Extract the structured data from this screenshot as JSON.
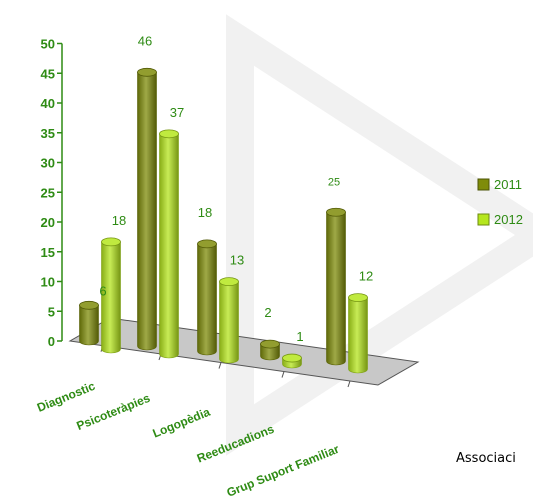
{
  "chart_data": {
    "type": "bar",
    "style": "3d-cylinder",
    "categories": [
      "Diagnostic",
      "Psicoteràpies",
      "Logopèdia",
      "Reeducadions",
      "Grup Suport Familiar"
    ],
    "series": [
      {
        "name": "2011",
        "values": [
          6,
          46,
          18,
          2,
          25
        ],
        "color": "#7f8c0a"
      },
      {
        "name": "2012",
        "values": [
          18,
          37,
          13,
          1,
          12
        ],
        "color": "#b5e61d"
      }
    ],
    "ylim": [
      0,
      50
    ],
    "yticks": [
      0,
      5,
      10,
      15,
      20,
      25,
      30,
      35,
      40,
      45,
      50
    ],
    "legend_position": "right",
    "grid": false,
    "label_color": "#2e8b14",
    "axis_color": "#2e8b14"
  },
  "footer_text": "Associaci"
}
